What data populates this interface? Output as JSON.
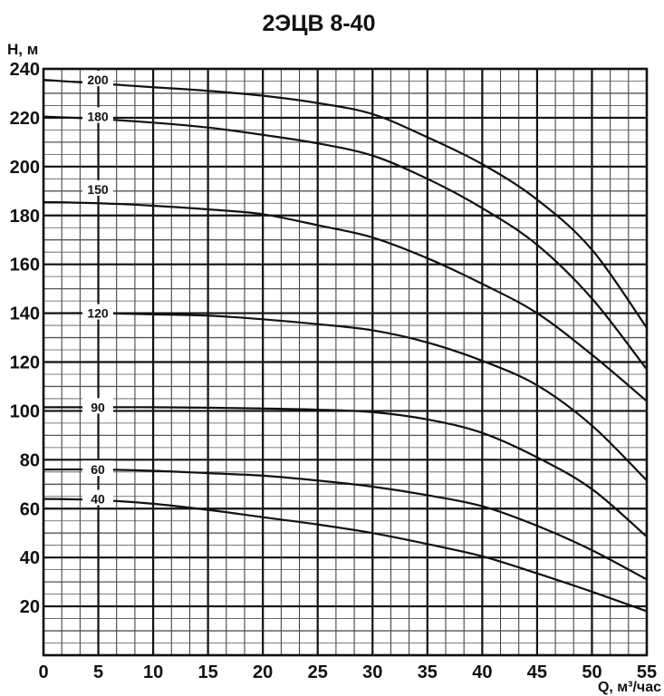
{
  "chart_data": {
    "type": "line",
    "title": "2ЭЦВ 8-40",
    "xlabel": "Q, м³/час",
    "ylabel": "H, м",
    "xlim": [
      0,
      55
    ],
    "ylim": [
      0,
      240
    ],
    "x_ticks": [
      0,
      5,
      10,
      15,
      20,
      25,
      30,
      35,
      40,
      45,
      50,
      55
    ],
    "y_ticks": [
      20,
      40,
      60,
      80,
      100,
      120,
      140,
      160,
      180,
      200,
      220,
      240
    ],
    "grid": true,
    "x": [
      0,
      5,
      10,
      15,
      20,
      25,
      30,
      35,
      40,
      45,
      50,
      55
    ],
    "series": [
      {
        "name": "200",
        "values": [
          235.5,
          234,
          232.5,
          231,
          229,
          226,
          221.5,
          212,
          201,
          186.5,
          166,
          134
        ]
      },
      {
        "name": "180",
        "values": [
          220.5,
          219.5,
          218,
          216,
          213,
          209.5,
          204.5,
          195,
          183,
          168,
          146,
          117
        ]
      },
      {
        "name": "150",
        "values": [
          185.5,
          185,
          184,
          182.5,
          180.5,
          176,
          171,
          162.5,
          152,
          140,
          123,
          104
        ]
      },
      {
        "name": "120",
        "values": [
          140,
          140,
          139.5,
          139,
          137.5,
          135.5,
          133,
          128,
          120.5,
          110.5,
          94,
          71.5
        ]
      },
      {
        "name": "90",
        "values": [
          101.5,
          101.5,
          101.5,
          101.3,
          101,
          100.5,
          99.5,
          96.5,
          91,
          81,
          68,
          48.5
        ]
      },
      {
        "name": "60",
        "values": [
          76,
          76,
          75.5,
          74.5,
          73.5,
          71.5,
          69,
          65.5,
          61,
          53,
          43,
          31
        ]
      },
      {
        "name": "40",
        "values": [
          64,
          63.5,
          62,
          59.5,
          56.5,
          53.5,
          50,
          45.5,
          40.5,
          33.5,
          26,
          18
        ]
      }
    ],
    "line_color": "#111111"
  }
}
